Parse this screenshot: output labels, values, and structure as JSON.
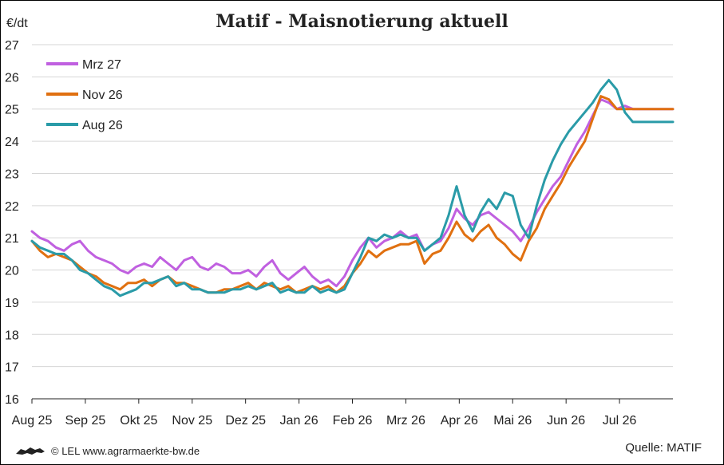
{
  "footer": {
    "credit": "© LEL www.agrarmaerkte-bw.de",
    "source": "Quelle: MATIF"
  },
  "chart_data": {
    "type": "line",
    "title": "Matif - Maisnotierung aktuell",
    "ylabel": "€/dt",
    "ylim": [
      16,
      27
    ],
    "yticks": [
      16,
      17,
      18,
      19,
      20,
      21,
      22,
      23,
      24,
      25,
      26,
      27
    ],
    "months": [
      "Aug 25",
      "Sep 25",
      "Okt 25",
      "Nov 25",
      "Dez 25",
      "Jan 26",
      "Feb 26",
      "Mrz 26",
      "Apr 26",
      "Mai 26",
      "Jun 26",
      "Jul 26"
    ],
    "grid": true,
    "legend_position": "top-left",
    "x_index_range": [
      0,
      24
    ],
    "series": [
      {
        "name": "Mrz 27",
        "color": "#c060e0",
        "x": [
          0,
          0.3,
          0.6,
          0.9,
          1.2,
          1.5,
          1.8,
          2.1,
          2.4,
          2.7,
          3,
          3.3,
          3.6,
          3.9,
          4.2,
          4.5,
          4.8,
          5.1,
          5.4,
          5.7,
          6,
          6.3,
          6.6,
          6.9,
          7.2,
          7.5,
          7.8,
          8.1,
          8.4,
          8.7,
          9,
          9.3,
          9.6,
          9.9,
          10.2,
          10.5,
          10.8,
          11.1,
          11.4,
          11.7,
          12,
          12.3,
          12.6,
          12.9,
          13.2,
          13.5,
          13.8,
          14.1,
          14.4,
          14.7,
          15,
          15.3,
          15.6,
          15.9,
          16.2,
          16.5,
          16.8,
          17.1,
          17.4,
          17.7,
          18,
          18.3,
          18.6,
          18.9,
          19.2,
          19.5,
          19.8,
          20.1,
          20.4,
          20.7,
          21,
          21.3,
          21.6,
          21.9,
          22.2,
          22.5,
          22.8,
          23.1,
          23.4,
          23.7,
          24
        ],
        "values": [
          21.2,
          21.0,
          20.9,
          20.7,
          20.6,
          20.8,
          20.9,
          20.6,
          20.4,
          20.3,
          20.2,
          20.0,
          19.9,
          20.1,
          20.2,
          20.1,
          20.4,
          20.2,
          20.0,
          20.3,
          20.4,
          20.1,
          20.0,
          20.2,
          20.1,
          19.9,
          19.9,
          20.0,
          19.8,
          20.1,
          20.3,
          19.9,
          19.7,
          19.9,
          20.1,
          19.8,
          19.6,
          19.7,
          19.5,
          19.8,
          20.3,
          20.7,
          21.0,
          20.7,
          20.9,
          21.0,
          21.2,
          21.0,
          21.1,
          20.6,
          20.8,
          20.9,
          21.3,
          21.9,
          21.6,
          21.4,
          21.7,
          21.8,
          21.6,
          21.4,
          21.2,
          20.9,
          21.3,
          21.8,
          22.2,
          22.6,
          22.9,
          23.4,
          23.9,
          24.3,
          24.8,
          25.3,
          25.2,
          25.0,
          25.1,
          25.0,
          25.0,
          25.0,
          25.0,
          25.0,
          25.0
        ]
      },
      {
        "name": "Nov 26",
        "color": "#e07010",
        "x": [
          0,
          0.3,
          0.6,
          0.9,
          1.2,
          1.5,
          1.8,
          2.1,
          2.4,
          2.7,
          3,
          3.3,
          3.6,
          3.9,
          4.2,
          4.5,
          4.8,
          5.1,
          5.4,
          5.7,
          6,
          6.3,
          6.6,
          6.9,
          7.2,
          7.5,
          7.8,
          8.1,
          8.4,
          8.7,
          9,
          9.3,
          9.6,
          9.9,
          10.2,
          10.5,
          10.8,
          11.1,
          11.4,
          11.7,
          12,
          12.3,
          12.6,
          12.9,
          13.2,
          13.5,
          13.8,
          14.1,
          14.4,
          14.7,
          15,
          15.3,
          15.6,
          15.9,
          16.2,
          16.5,
          16.8,
          17.1,
          17.4,
          17.7,
          18,
          18.3,
          18.6,
          18.9,
          19.2,
          19.5,
          19.8,
          20.1,
          20.4,
          20.7,
          21,
          21.3,
          21.6,
          21.9,
          22.2,
          22.5,
          22.8,
          23.1,
          23.4,
          23.7,
          24
        ],
        "values": [
          20.9,
          20.6,
          20.4,
          20.5,
          20.4,
          20.3,
          20.1,
          19.9,
          19.8,
          19.6,
          19.5,
          19.4,
          19.6,
          19.6,
          19.7,
          19.5,
          19.7,
          19.8,
          19.6,
          19.6,
          19.5,
          19.4,
          19.3,
          19.3,
          19.4,
          19.4,
          19.5,
          19.6,
          19.4,
          19.6,
          19.5,
          19.4,
          19.5,
          19.3,
          19.4,
          19.5,
          19.4,
          19.5,
          19.3,
          19.5,
          19.9,
          20.2,
          20.6,
          20.4,
          20.6,
          20.7,
          20.8,
          20.8,
          20.9,
          20.2,
          20.5,
          20.6,
          21.0,
          21.5,
          21.1,
          20.9,
          21.2,
          21.4,
          21.0,
          20.8,
          20.5,
          20.3,
          20.9,
          21.3,
          21.9,
          22.3,
          22.7,
          23.2,
          23.6,
          24.0,
          24.7,
          25.4,
          25.3,
          25.0,
          25.0,
          25.0,
          25.0,
          25.0,
          25.0,
          25.0,
          25.0
        ]
      },
      {
        "name": "Aug 26",
        "color": "#2a9ba8",
        "x": [
          0,
          0.3,
          0.6,
          0.9,
          1.2,
          1.5,
          1.8,
          2.1,
          2.4,
          2.7,
          3,
          3.3,
          3.6,
          3.9,
          4.2,
          4.5,
          4.8,
          5.1,
          5.4,
          5.7,
          6,
          6.3,
          6.6,
          6.9,
          7.2,
          7.5,
          7.8,
          8.1,
          8.4,
          8.7,
          9,
          9.3,
          9.6,
          9.9,
          10.2,
          10.5,
          10.8,
          11.1,
          11.4,
          11.7,
          12,
          12.3,
          12.6,
          12.9,
          13.2,
          13.5,
          13.8,
          14.1,
          14.4,
          14.7,
          15,
          15.3,
          15.6,
          15.9,
          16.2,
          16.5,
          16.8,
          17.1,
          17.4,
          17.7,
          18,
          18.3,
          18.6,
          18.9,
          19.2,
          19.5,
          19.8,
          20.1,
          20.4,
          20.7,
          21,
          21.3,
          21.6,
          21.9,
          22.2,
          22.5,
          22.8,
          23.1,
          23.4,
          23.7,
          24
        ],
        "values": [
          20.9,
          20.7,
          20.6,
          20.5,
          20.5,
          20.3,
          20.0,
          19.9,
          19.7,
          19.5,
          19.4,
          19.2,
          19.3,
          19.4,
          19.6,
          19.6,
          19.7,
          19.8,
          19.5,
          19.6,
          19.4,
          19.4,
          19.3,
          19.3,
          19.3,
          19.4,
          19.4,
          19.5,
          19.4,
          19.5,
          19.6,
          19.3,
          19.4,
          19.3,
          19.3,
          19.5,
          19.3,
          19.4,
          19.3,
          19.4,
          19.9,
          20.4,
          21.0,
          20.9,
          21.1,
          21.0,
          21.1,
          21.0,
          21.0,
          20.6,
          20.8,
          21.0,
          21.7,
          22.6,
          21.7,
          21.2,
          21.8,
          22.2,
          21.9,
          22.4,
          22.3,
          21.4,
          21.0,
          22.0,
          22.8,
          23.4,
          23.9,
          24.3,
          24.6,
          24.9,
          25.2,
          25.6,
          25.9,
          25.6,
          24.9,
          24.6,
          24.6,
          24.6,
          24.6,
          24.6,
          24.6
        ]
      }
    ]
  }
}
